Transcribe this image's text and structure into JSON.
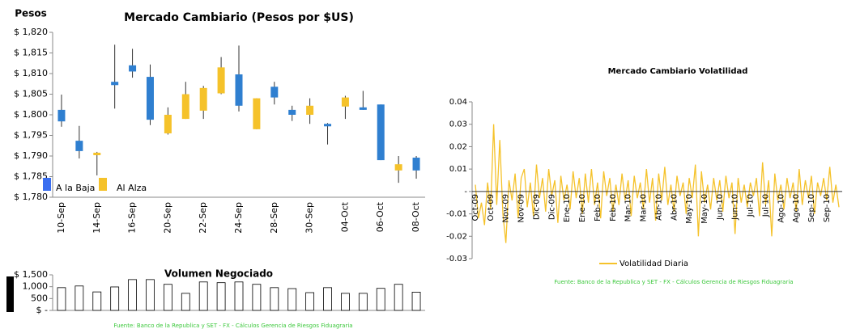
{
  "chart_data": [
    {
      "type": "candlestick",
      "title": "Mercado Cambiario (Pesos por $US)",
      "y_label": "Pesos",
      "categories": [
        "10-Sep",
        null,
        "14-Sep",
        null,
        "16-Sep",
        null,
        "20-Sep",
        null,
        "22-Sep",
        null,
        "24-Sep",
        null,
        "28-Sep",
        null,
        "30-Sep",
        null,
        "04-Oct",
        null,
        "06-Oct",
        null,
        "08-Oct"
      ],
      "open": [
        1801.2,
        1793.7,
        1790.2,
        1808.0,
        1812.0,
        1809.2,
        1795.5,
        1799.0,
        1801.0,
        1805.2,
        1809.8,
        1796.5,
        1806.8,
        1801.2,
        1800.0,
        1797.8,
        1802.0,
        1801.8,
        1802.5,
        1786.5,
        1789.6
      ],
      "high": [
        1804.9,
        1797.3,
        1791.0,
        1817.0,
        1816.0,
        1812.2,
        1801.8,
        1808.0,
        1807.0,
        1814.0,
        1816.8,
        1804.0,
        1808.0,
        1802.2,
        1804.0,
        1798.0,
        1804.6,
        1805.8,
        1802.5,
        1790.0,
        1790.0
      ],
      "low": [
        1797.1,
        1789.4,
        1785.3,
        1801.5,
        1809.0,
        1797.5,
        1795.2,
        1799.0,
        1799.0,
        1805.0,
        1800.8,
        1796.5,
        1802.5,
        1798.5,
        1797.8,
        1792.8,
        1799.0,
        1801.2,
        1789.0,
        1783.5,
        1784.5
      ],
      "close": [
        1798.4,
        1791.2,
        1790.8,
        1807.2,
        1810.5,
        1798.8,
        1800.0,
        1805.0,
        1806.5,
        1811.5,
        1802.2,
        1804.0,
        1804.2,
        1800.0,
        1802.2,
        1797.2,
        1804.2,
        1801.2,
        1789.0,
        1788.0,
        1786.5
      ],
      "down": {
        "name": "A la Baja",
        "color": "#2f7fd0"
      },
      "up": {
        "name": "Al Alza",
        "color": "#f5c22a"
      },
      "ylim": [
        1780,
        1820
      ],
      "yticks": [
        {
          "value": 1780,
          "label": "$ 1,780"
        },
        {
          "value": 1785,
          "label": "$ 1,785"
        },
        {
          "value": 1790,
          "label": "$ 1,790"
        },
        {
          "value": 1795,
          "label": "$ 1,795"
        },
        {
          "value": 1800,
          "label": "$ 1,800"
        },
        {
          "value": 1805,
          "label": "$ 1,805"
        },
        {
          "value": 1810,
          "label": "$ 1,810"
        },
        {
          "value": 1815,
          "label": "$ 1,815"
        },
        {
          "value": 1820,
          "label": "$ 1,820"
        }
      ]
    },
    {
      "type": "bar",
      "title": "Volumen Negociado",
      "values": [
        960,
        1030,
        780,
        990,
        1300,
        1300,
        1100,
        720,
        1200,
        1170,
        1200,
        1100,
        960,
        920,
        750,
        960,
        720,
        720,
        930,
        1100,
        770
      ],
      "color": "#ffffff",
      "ylim": [
        0,
        1500
      ],
      "yticks": [
        {
          "value": 0,
          "label": "$ -"
        },
        500,
        {
          "value": 1000,
          "label": "1,000"
        },
        {
          "value": 1500,
          "label": "$ 1,500"
        }
      ],
      "source": "Fuente: Banco de la Republica y SET - FX - Cálculos Gerencia de Riesgos Fiduagraria"
    },
    {
      "type": "line",
      "title": "Mercado Cambiario Volatilidad",
      "categories": [
        "Oct-09",
        null,
        null,
        null,
        null,
        "Oct-09",
        null,
        null,
        null,
        null,
        "Nov-09",
        null,
        null,
        null,
        null,
        "Nov-09",
        null,
        null,
        null,
        null,
        "Dic-09",
        null,
        null,
        null,
        null,
        "Dic-09",
        null,
        null,
        null,
        null,
        "Ene-10",
        null,
        null,
        null,
        null,
        "Ene-10",
        null,
        null,
        null,
        null,
        "Feb-10",
        null,
        null,
        null,
        null,
        "Feb-10",
        null,
        null,
        null,
        null,
        "Mar-10",
        null,
        null,
        null,
        null,
        "Mar-10",
        null,
        null,
        null,
        null,
        "Abr-10",
        null,
        null,
        null,
        null,
        "Abr-10",
        null,
        null,
        null,
        null,
        "May-10",
        null,
        null,
        null,
        null,
        "May-10",
        null,
        null,
        null,
        null,
        "Jun-10",
        null,
        null,
        null,
        null,
        "Jun-10",
        null,
        null,
        null,
        null,
        "Jul-10",
        null,
        null,
        null,
        null,
        "Jul-10",
        null,
        null,
        null,
        null,
        "Ago-10",
        null,
        null,
        null,
        null,
        "Ago-10",
        null,
        null,
        null,
        null,
        "Sep-10",
        null,
        null,
        null,
        null,
        "Sep-10",
        null,
        null,
        null,
        null
      ],
      "series": [
        {
          "name": "Volatilidad Diaria",
          "color": "#f5c22a",
          "values": [
            0.003,
            -0.012,
            -0.005,
            -0.015,
            0.004,
            -0.008,
            0.03,
            -0.006,
            0.023,
            -0.01,
            -0.023,
            0.005,
            -0.004,
            0.008,
            -0.012,
            0.006,
            0.01,
            -0.007,
            0.004,
            -0.011,
            0.012,
            -0.003,
            0.006,
            -0.009,
            0.01,
            -0.002,
            0.005,
            -0.014,
            0.007,
            -0.004,
            0.003,
            -0.008,
            0.009,
            -0.003,
            0.006,
            -0.01,
            0.008,
            -0.005,
            0.01,
            -0.006,
            0.004,
            -0.012,
            0.009,
            -0.002,
            0.006,
            -0.009,
            0.003,
            -0.006,
            0.008,
            -0.004,
            0.005,
            -0.011,
            0.007,
            -0.003,
            0.004,
            -0.008,
            0.01,
            -0.005,
            0.006,
            -0.013,
            0.008,
            -0.004,
            0.011,
            -0.006,
            0.003,
            -0.009,
            0.007,
            -0.002,
            0.004,
            -0.01,
            0.006,
            -0.003,
            0.012,
            -0.02,
            0.009,
            -0.005,
            0.003,
            -0.008,
            0.006,
            -0.004,
            0.005,
            -0.009,
            0.007,
            -0.003,
            0.004,
            -0.019,
            0.006,
            -0.005,
            0.003,
            -0.007,
            0.004,
            -0.002,
            0.006,
            -0.011,
            0.013,
            -0.006,
            0.005,
            -0.02,
            0.008,
            -0.004,
            0.003,
            -0.008,
            0.006,
            -0.003,
            0.004,
            -0.009,
            0.01,
            -0.006,
            0.005,
            -0.003,
            0.007,
            -0.01,
            0.004,
            -0.002,
            0.006,
            -0.004,
            0.011,
            -0.005,
            0.003,
            -0.007
          ]
        }
      ],
      "ylim": [
        -0.03,
        0.04
      ],
      "yticks": [
        0.04,
        0.03,
        0.02,
        0.01,
        {
          "value": 0,
          "label": "-"
        },
        -0.01,
        -0.02,
        -0.03
      ],
      "source": "Fuente: Banco de la Republica y SET - FX - Cálculos Gerencia de Riesgos Fiduagraria"
    }
  ]
}
